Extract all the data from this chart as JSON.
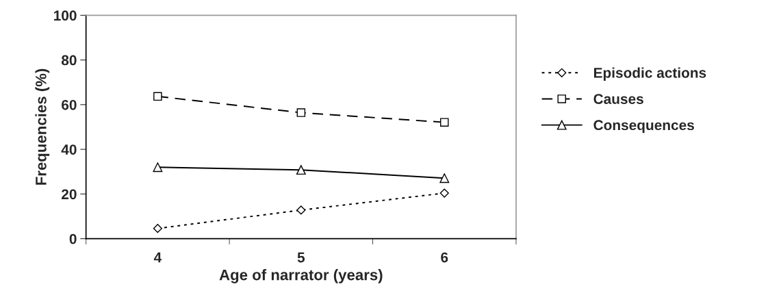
{
  "chart_data": {
    "type": "line",
    "xlabel": "Age of narrator (years)",
    "ylabel": "Frequencies (%)",
    "categories": [
      "4",
      "5",
      "6"
    ],
    "series": [
      {
        "name": "Episodic actions",
        "color": "#000000",
        "values": [
          4.6,
          12.8,
          20.4
        ],
        "marker": "diamond",
        "line_style": "dotted"
      },
      {
        "name": "Causes",
        "color": "#000000",
        "values": [
          63.7,
          56.4,
          52.1
        ],
        "marker": "square",
        "line_style": "dashed"
      },
      {
        "name": "Consequences",
        "color": "#000000",
        "values": [
          32,
          30.8,
          27.1
        ],
        "marker": "triangle",
        "line_style": "solid"
      }
    ],
    "ylim": [
      0,
      100
    ],
    "yticks": [
      0,
      20,
      40,
      60,
      80,
      100
    ],
    "grid": false,
    "legend": "right"
  }
}
